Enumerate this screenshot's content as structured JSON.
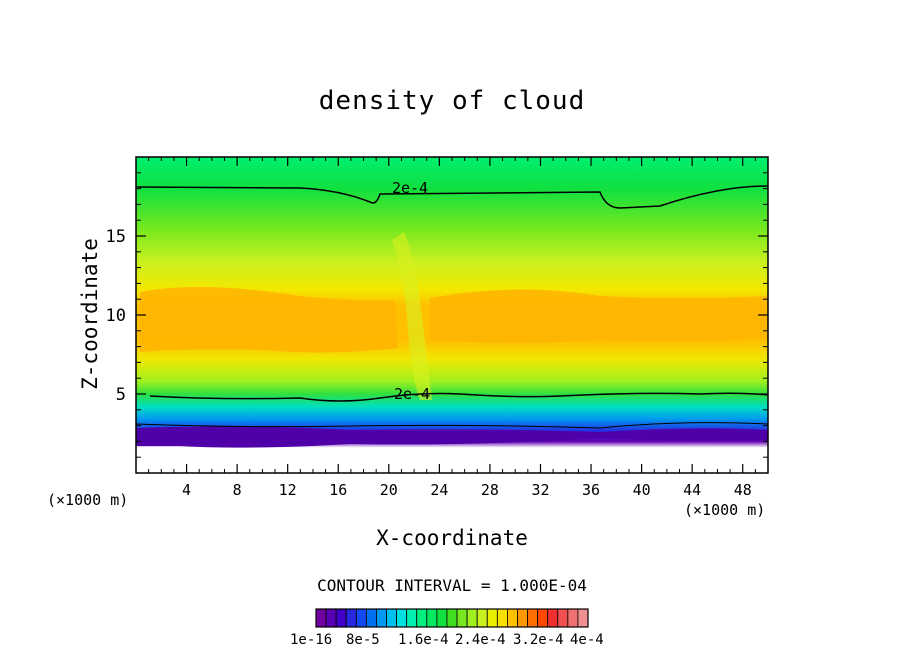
{
  "chart_data": {
    "type": "heatmap",
    "title": "density of cloud",
    "xlabel": "X-coordinate",
    "ylabel": "Z-coordinate",
    "x_unit_left": "(×1000 m)",
    "x_unit_right": "(×1000 m)",
    "xlim": [
      0,
      50
    ],
    "ylim": [
      0,
      20
    ],
    "x_ticks": [
      "4",
      "8",
      "12",
      "16",
      "20",
      "24",
      "28",
      "32",
      "36",
      "40",
      "44",
      "48"
    ],
    "y_ticks": [
      "5",
      "10",
      "15"
    ],
    "contour_label": "2e-4",
    "contour_interval_text": "CONTOUR INTERVAL = 1.000E-04",
    "colorbar_labels": [
      "1e-16",
      "8e-5",
      "1.6e-4",
      "2.4e-4",
      "3.2e-4",
      "4e-4"
    ],
    "colorbar_range": [
      1e-16,
      0.00044
    ],
    "colors": [
      "#7000a0",
      "#5a00b4",
      "#4000c8",
      "#2828e0",
      "#1448f0",
      "#0070f0",
      "#0098f0",
      "#00c0f0",
      "#00e0e0",
      "#00f0b0",
      "#00f080",
      "#00e860",
      "#10e040",
      "#40e020",
      "#78e820",
      "#a0f020",
      "#c8f020",
      "#e8f000",
      "#f8e000",
      "#ffc000",
      "#ff9800",
      "#ff7000",
      "#ff4800",
      "#f03030",
      "#f05050",
      "#f07070",
      "#f09090"
    ]
  }
}
